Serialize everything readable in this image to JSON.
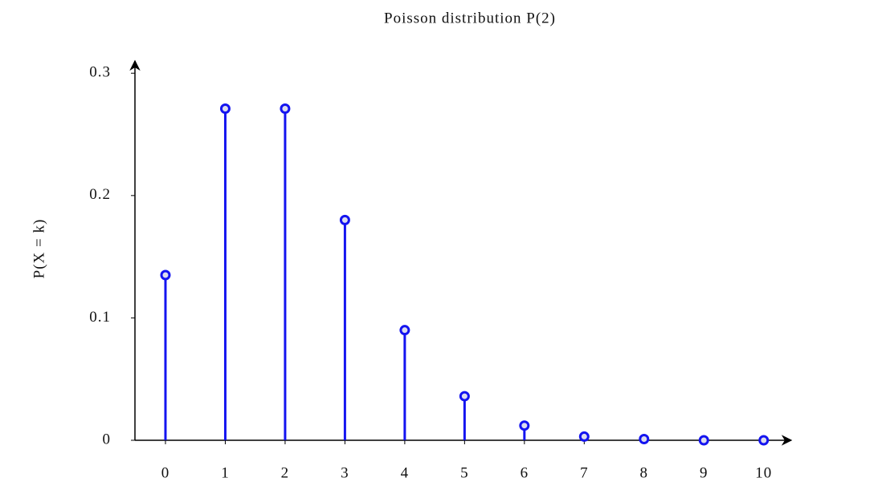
{
  "chart_data": {
    "type": "stem",
    "title": "Poisson distribution P(2)",
    "ylabel": "P(X = k)",
    "x": [
      0,
      1,
      2,
      3,
      4,
      5,
      6,
      7,
      8,
      9,
      10
    ],
    "values": [
      0.135,
      0.271,
      0.271,
      0.18,
      0.09,
      0.036,
      0.012,
      0.003,
      0.001,
      0,
      0
    ],
    "color": "#1414f0",
    "xlim": [
      -0.51,
      10.46
    ],
    "xticks": [
      0,
      1,
      2,
      3,
      4,
      5,
      6,
      7,
      8,
      9,
      10
    ],
    "ylim": [
      0,
      0.31
    ],
    "yticks": [
      0,
      0.1,
      0.2,
      0.3
    ],
    "grid": false
  }
}
